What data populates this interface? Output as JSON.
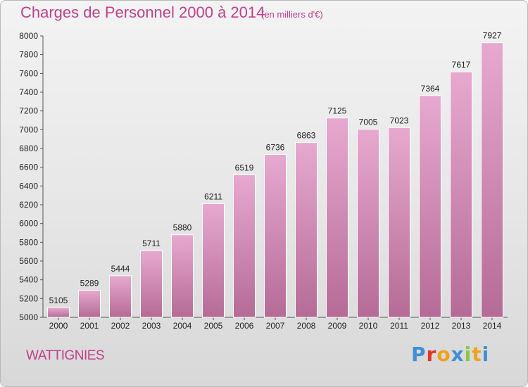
{
  "header": {
    "title": "Charges de Personnel 2000 à 2014",
    "subtitle": "(en milliers d'€)"
  },
  "footer": {
    "place": "WATTIGNIES",
    "logo": [
      "P",
      "r",
      "o",
      "x",
      "i",
      "t",
      "i"
    ]
  },
  "colors": {
    "bar_light": "#e7a9cf",
    "bar_dark": "#b56b96",
    "title": "#c0408a",
    "logo": [
      "#3f8fd6",
      "#e2342b",
      "#f0a21a",
      "#3f8fd6",
      "#8dc63f",
      "#f0a21a",
      "#3f8fd6"
    ]
  },
  "chart_data": {
    "type": "bar",
    "title": "Charges de Personnel 2000 à 2014",
    "subtitle": "(en milliers d'€)",
    "categories": [
      "2000",
      "2001",
      "2002",
      "2003",
      "2004",
      "2005",
      "2006",
      "2007",
      "2008",
      "2009",
      "2010",
      "2011",
      "2012",
      "2013",
      "2014"
    ],
    "values": [
      5105,
      5289,
      5444,
      5711,
      5880,
      6211,
      6519,
      6736,
      6863,
      7125,
      7005,
      7023,
      7364,
      7617,
      7927
    ],
    "ylim": [
      5000,
      8000
    ],
    "yticks": [
      5000,
      5200,
      5400,
      5600,
      5800,
      6000,
      6200,
      6400,
      6600,
      6800,
      7000,
      7200,
      7400,
      7600,
      7800,
      8000
    ],
    "xlabel": "",
    "ylabel": "",
    "grid": false
  }
}
